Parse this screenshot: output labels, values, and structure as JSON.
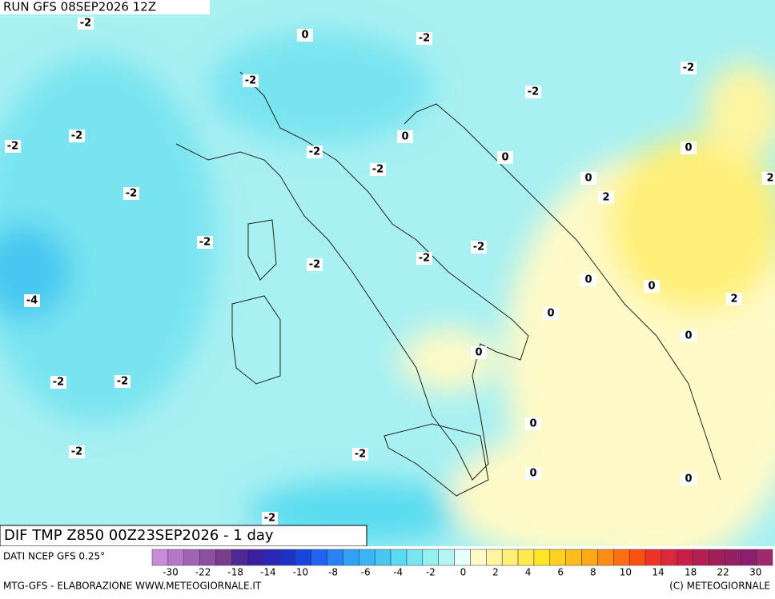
{
  "header": {
    "run": "RUN GFS 08SEP2026 12Z"
  },
  "map": {
    "title": "DIF TMP Z850 00Z23SEP2026 - 1 day",
    "contour_labels": [
      -2,
      0,
      -2,
      -2,
      -2,
      -2,
      -2,
      -2,
      0,
      -2,
      0,
      0,
      -2,
      0,
      2,
      -2,
      2,
      -2,
      -2,
      -2,
      -2,
      0,
      0,
      -4,
      2,
      0,
      0,
      0,
      -2,
      -2,
      0,
      -2,
      -2,
      0,
      0,
      -2
    ]
  },
  "colorbar": {
    "source": "DATI NCEP GFS 0.25°",
    "ticks": [
      -30,
      -22,
      -18,
      -14,
      -10,
      -8,
      -6,
      -4,
      -2,
      0,
      2,
      4,
      6,
      8,
      10,
      14,
      18,
      22,
      30
    ],
    "colors": [
      "#c88cd8",
      "#b478c8",
      "#a064b4",
      "#8c50a0",
      "#783c8c",
      "#502896",
      "#3c1ea0",
      "#2828b4",
      "#1e32c8",
      "#1446dc",
      "#1e64f0",
      "#2882f5",
      "#32a0f5",
      "#3cb4f5",
      "#46c8f0",
      "#5adcf0",
      "#78e6f0",
      "#96f0f0",
      "#b4f5f5",
      "#e6ffff",
      "#fffac8",
      "#fff5a0",
      "#fff078",
      "#ffeb50",
      "#ffe628",
      "#ffd21e",
      "#ffbe1e",
      "#ffaa14",
      "#ff8c14",
      "#ff6e14",
      "#ff5014",
      "#f03228",
      "#dc283c",
      "#c81e46",
      "#b41e50",
      "#a01e5a",
      "#961e64",
      "#8c1e6e",
      "#a0286e"
    ]
  },
  "footer": {
    "left": "MTG-GFS - ELABORAZIONE WWW.METEOGIORNALE.IT",
    "right": "(C) METEOGIORNALE"
  }
}
